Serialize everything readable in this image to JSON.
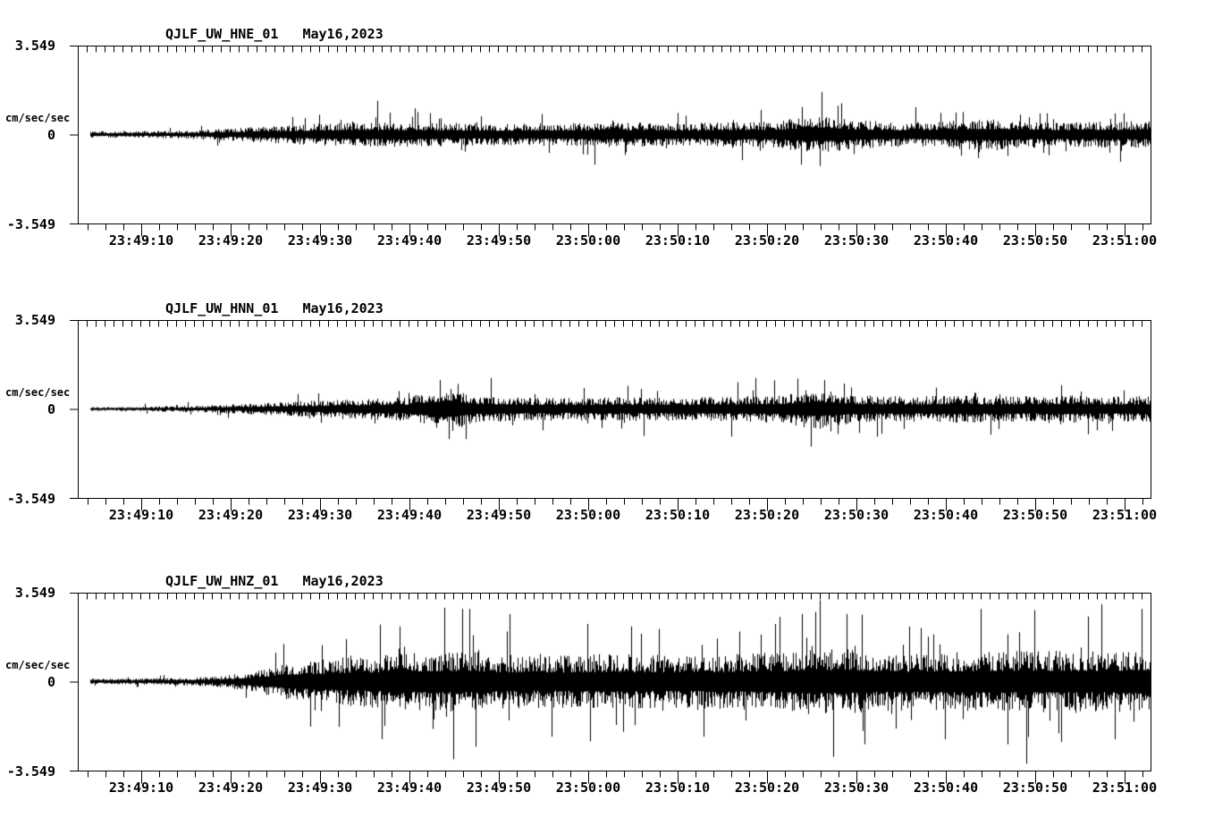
{
  "page": {
    "background": "#ffffff",
    "ink": "#000000"
  },
  "chart_data": {
    "type": "seismogram",
    "description": "Three stacked strong-motion seismogram panels (accelerograms), black traces on white",
    "units_label": "cm/sec/sec",
    "ylim": [
      -3.549,
      3.549
    ],
    "time_window_seconds": 120,
    "x_major_tick_seconds": 10,
    "x_minor_tick_seconds": 2,
    "x_top_tick_seconds": 1,
    "grid": false,
    "x_tick_labels": [
      "23:49:10",
      "23:49:20",
      "23:49:30",
      "23:49:40",
      "23:49:50",
      "23:50:00",
      "23:50:10",
      "23:50:20",
      "23:50:30",
      "23:50:40",
      "23:50:50",
      "23:51:00"
    ],
    "x_range_estimate": [
      "23:49:03",
      "23:51:03"
    ],
    "panels": [
      {
        "station_channel": "QJLF_UW_HNE_01",
        "date": "May16,2023",
        "units_label": "cm/sec/sec",
        "y_ticks": [
          "3.549",
          "0",
          "-3.549"
        ],
        "envelope_cm_s2": [
          [
            0,
            0.12
          ],
          [
            6,
            0.12
          ],
          [
            12,
            0.15
          ],
          [
            18,
            0.25
          ],
          [
            24,
            0.35
          ],
          [
            30,
            0.45
          ],
          [
            36,
            0.45
          ],
          [
            42,
            0.42
          ],
          [
            48,
            0.4
          ],
          [
            54,
            0.42
          ],
          [
            60,
            0.45
          ],
          [
            66,
            0.42
          ],
          [
            72,
            0.44
          ],
          [
            78,
            0.48
          ],
          [
            81,
            0.62
          ],
          [
            84,
            0.66
          ],
          [
            87,
            0.52
          ],
          [
            92,
            0.44
          ],
          [
            97,
            0.5
          ],
          [
            101,
            0.56
          ],
          [
            105,
            0.52
          ],
          [
            109,
            0.44
          ],
          [
            114,
            0.48
          ],
          [
            120,
            0.48
          ]
        ],
        "spikes": [
          {
            "t": 24,
            "a": 0.7
          },
          {
            "t": 33.5,
            "a": 1.35
          },
          {
            "t": 38,
            "a": 0.9
          },
          {
            "t": 57,
            "a": -0.8
          },
          {
            "t": 68,
            "a": 0.75
          },
          {
            "t": 81,
            "a": 1.1
          },
          {
            "t": 83,
            "a": -1.25
          },
          {
            "t": 85,
            "a": 1.15
          },
          {
            "t": 99,
            "a": 0.9
          },
          {
            "t": 104,
            "a": -0.85
          },
          {
            "t": 117,
            "a": 0.85
          },
          {
            "t": 120,
            "a": -0.8
          }
        ]
      },
      {
        "station_channel": "QJLF_UW_HNN_01",
        "date": "May16,2023",
        "units_label": "cm/sec/sec",
        "y_ticks": [
          "3.549",
          "0",
          "-3.549"
        ],
        "envelope_cm_s2": [
          [
            0,
            0.07
          ],
          [
            8,
            0.09
          ],
          [
            14,
            0.13
          ],
          [
            20,
            0.2
          ],
          [
            26,
            0.3
          ],
          [
            32,
            0.38
          ],
          [
            37,
            0.44
          ],
          [
            40,
            0.72
          ],
          [
            42,
            0.8
          ],
          [
            44,
            0.52
          ],
          [
            50,
            0.42
          ],
          [
            56,
            0.4
          ],
          [
            62,
            0.44
          ],
          [
            68,
            0.42
          ],
          [
            74,
            0.46
          ],
          [
            79,
            0.52
          ],
          [
            82,
            0.72
          ],
          [
            84,
            0.66
          ],
          [
            87,
            0.5
          ],
          [
            93,
            0.46
          ],
          [
            99,
            0.5
          ],
          [
            105,
            0.46
          ],
          [
            111,
            0.5
          ],
          [
            116,
            0.46
          ],
          [
            120,
            0.48
          ]
        ],
        "spikes": [
          {
            "t": 40.5,
            "a": 1.15
          },
          {
            "t": 41.5,
            "a": -1.2
          },
          {
            "t": 42.5,
            "a": 1.0
          },
          {
            "t": 52,
            "a": -0.85
          },
          {
            "t": 63,
            "a": 0.8
          },
          {
            "t": 82,
            "a": -1.5
          },
          {
            "t": 83.5,
            "a": 1.15
          },
          {
            "t": 85,
            "a": -1.0
          },
          {
            "t": 96,
            "a": 0.85
          },
          {
            "t": 103,
            "a": -0.8
          },
          {
            "t": 110,
            "a": 0.95
          },
          {
            "t": 114,
            "a": -0.85
          }
        ]
      },
      {
        "station_channel": "QJLF_UW_HNZ_01",
        "date": "May16,2023",
        "units_label": "cm/sec/sec",
        "y_ticks": [
          "3.549",
          "0",
          "-3.549"
        ],
        "envelope_cm_s2": [
          [
            0,
            0.1
          ],
          [
            6,
            0.11
          ],
          [
            12,
            0.14
          ],
          [
            16,
            0.2
          ],
          [
            20,
            0.4
          ],
          [
            24,
            0.7
          ],
          [
            28,
            0.85
          ],
          [
            32,
            0.92
          ],
          [
            36,
            1.0
          ],
          [
            40,
            1.1
          ],
          [
            44,
            1.1
          ],
          [
            48,
            0.98
          ],
          [
            54,
            0.95
          ],
          [
            60,
            1.02
          ],
          [
            66,
            0.96
          ],
          [
            72,
            1.0
          ],
          [
            78,
            1.08
          ],
          [
            82,
            1.22
          ],
          [
            86,
            1.18
          ],
          [
            90,
            1.06
          ],
          [
            96,
            1.04
          ],
          [
            102,
            1.12
          ],
          [
            108,
            1.12
          ],
          [
            114,
            1.1
          ],
          [
            120,
            1.22
          ]
        ],
        "spikes": [
          {
            "t": 23,
            "a": 1.5
          },
          {
            "t": 26,
            "a": -1.8
          },
          {
            "t": 30,
            "a": 1.7
          },
          {
            "t": 34,
            "a": -2.3
          },
          {
            "t": 36,
            "a": 2.2
          },
          {
            "t": 41,
            "a": 2.95
          },
          {
            "t": 42,
            "a": -3.1
          },
          {
            "t": 43,
            "a": 2.9
          },
          {
            "t": 44.5,
            "a": -2.6
          },
          {
            "t": 48,
            "a": 2.0
          },
          {
            "t": 53,
            "a": -2.2
          },
          {
            "t": 57,
            "a": 2.3
          },
          {
            "t": 61,
            "a": -2.0
          },
          {
            "t": 65,
            "a": 2.1
          },
          {
            "t": 70,
            "a": -2.2
          },
          {
            "t": 74,
            "a": 2.0
          },
          {
            "t": 78,
            "a": 2.3
          },
          {
            "t": 81,
            "a": 2.7
          },
          {
            "t": 83,
            "a": 3.25
          },
          {
            "t": 84.5,
            "a": -3.0
          },
          {
            "t": 86,
            "a": 2.7
          },
          {
            "t": 88,
            "a": -2.5
          },
          {
            "t": 93,
            "a": 2.2
          },
          {
            "t": 97,
            "a": -2.3
          },
          {
            "t": 101,
            "a": 2.9
          },
          {
            "t": 104,
            "a": -2.5
          },
          {
            "t": 107,
            "a": 2.85
          },
          {
            "t": 110,
            "a": -2.4
          },
          {
            "t": 113,
            "a": 2.6
          },
          {
            "t": 116,
            "a": -2.3
          },
          {
            "t": 119,
            "a": 2.9
          }
        ]
      }
    ]
  }
}
